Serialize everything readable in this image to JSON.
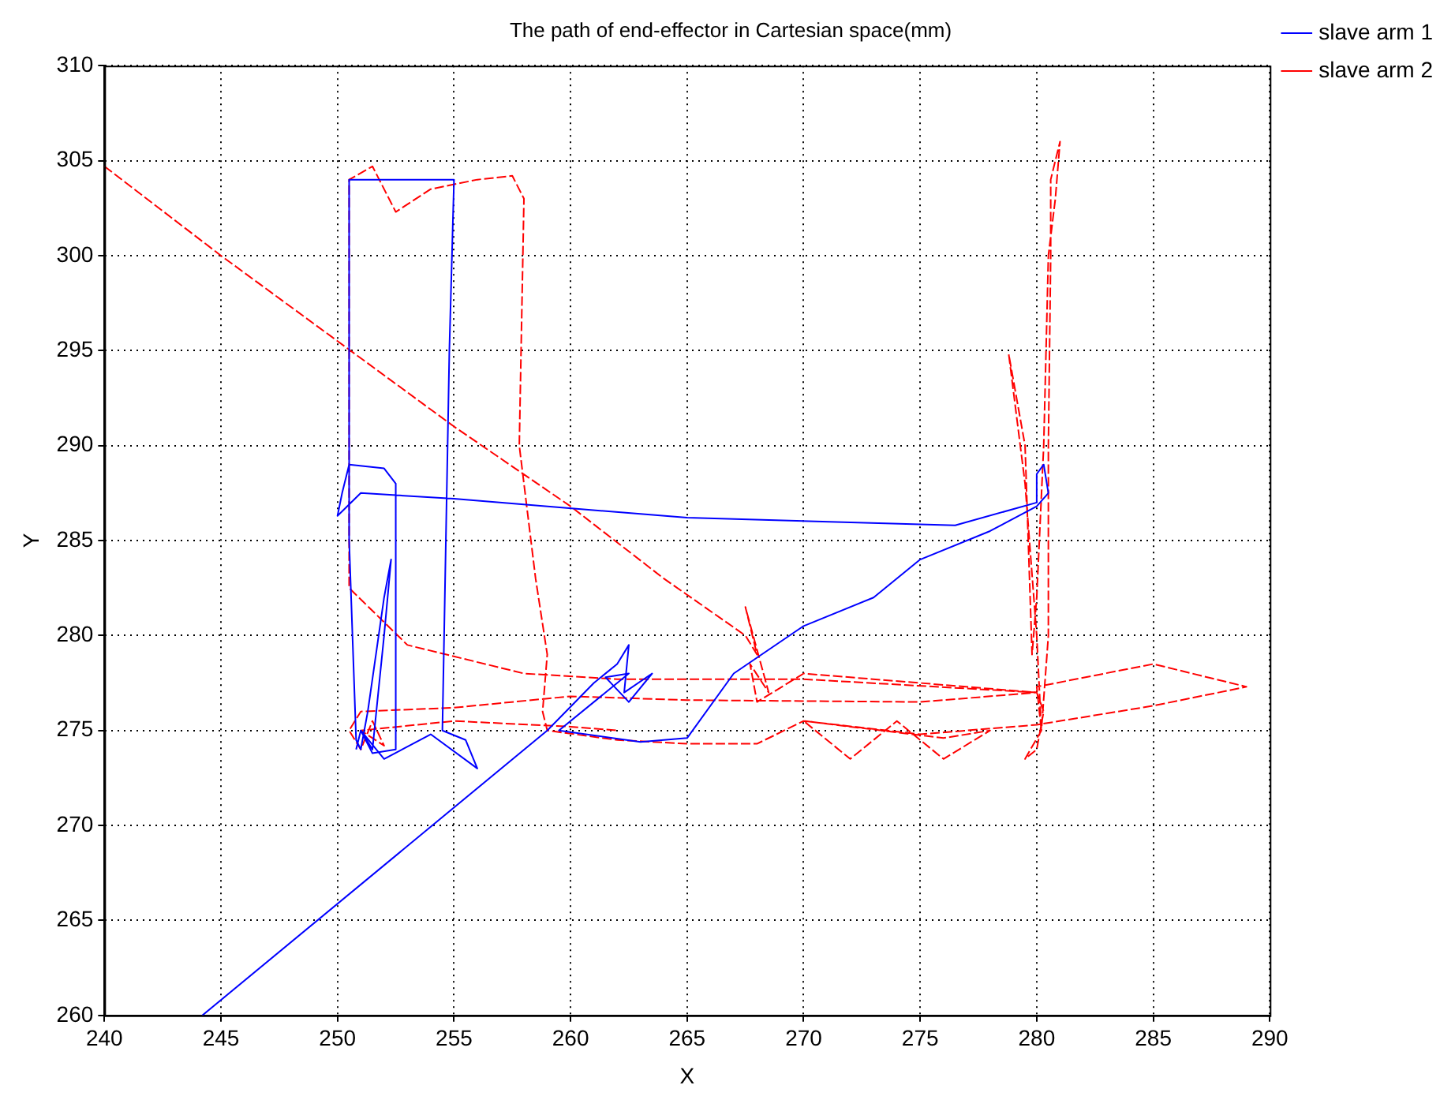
{
  "chart_data": {
    "type": "line",
    "title": "The path of end-effector in Cartesian space(mm)",
    "xlabel": "X",
    "ylabel": "Y",
    "xlim": [
      240,
      290
    ],
    "xticks": [
      240,
      245,
      250,
      255,
      260,
      265,
      270,
      275,
      280,
      285,
      290
    ],
    "ylim": [
      260,
      310
    ],
    "yticks": [
      260,
      265,
      270,
      275,
      280,
      285,
      290,
      295,
      300,
      305,
      310
    ],
    "grid": true,
    "legend": "top right",
    "marker": "none",
    "series": [
      {
        "name": "slave arm 1",
        "color": "#0000ff",
        "line_style": "solid",
        "x": [
          244.2,
          259,
          261,
          262,
          262.5,
          262.3,
          263.5,
          262.5,
          261.5,
          262.5,
          259.5,
          263,
          265,
          267,
          270,
          273,
          275,
          278,
          280,
          280.5,
          280.3,
          280,
          280,
          276.5,
          265,
          255,
          251,
          250,
          250.2,
          250.5,
          252,
          252.5,
          252.5,
          251.5,
          251,
          251.5,
          252,
          252.3,
          252,
          251.3,
          251,
          250.8,
          250.5,
          250.5,
          255,
          254.8,
          254.5,
          255.5,
          256,
          254,
          252,
          251,
          250.8
        ],
        "values": [
          260,
          275,
          277.5,
          278.5,
          279.5,
          277,
          278,
          276.5,
          277.8,
          278,
          275,
          274.4,
          274.6,
          278,
          280.5,
          282,
          284,
          285.5,
          286.8,
          287.5,
          289,
          288.5,
          287,
          285.8,
          286.2,
          287.2,
          287.5,
          286.3,
          287.5,
          289,
          288.8,
          288,
          274,
          273.8,
          275,
          274,
          280,
          284,
          282,
          276,
          274,
          274.5,
          285,
          304,
          304,
          295,
          275,
          274.5,
          273,
          274.8,
          273.5,
          275,
          274
        ]
      },
      {
        "name": "slave arm 2",
        "color": "#ff0000",
        "line_style": "dashed",
        "x": [
          240,
          245,
          250,
          255,
          260,
          264,
          267.5,
          268,
          267.5,
          268.5,
          267.7,
          268,
          270,
          275,
          280,
          280.3,
          280,
          279.5,
          280.2,
          280.5,
          280.5,
          280.6,
          280.6,
          281,
          280.8,
          280.5,
          280.3,
          280,
          279.8,
          279.5,
          278.8,
          279.5,
          280,
          280.2,
          280,
          285,
          289,
          285,
          280,
          275,
          270,
          272,
          274,
          276,
          278,
          276,
          270,
          268,
          265,
          262,
          259,
          258.8,
          259,
          258.5,
          257.8,
          258,
          257.5,
          256,
          254,
          252.5,
          251.5,
          250.5,
          250.5,
          253,
          258,
          262,
          270,
          280,
          275,
          265,
          260,
          255,
          251,
          250.5,
          251,
          251.5,
          252,
          251,
          255,
          260,
          262
        ],
        "values": [
          304.7,
          300,
          295.5,
          291,
          286.8,
          283,
          280,
          279,
          281.5,
          277,
          278.5,
          276.5,
          278,
          277.5,
          277,
          276,
          274,
          273.5,
          275,
          280,
          290,
          300,
          304,
          306,
          303,
          300,
          290,
          282,
          279,
          290,
          294.8,
          288,
          280,
          275,
          277.3,
          278.5,
          277.3,
          276.3,
          275.3,
          274.8,
          275.5,
          273.5,
          275.5,
          273.5,
          275,
          274.6,
          275.5,
          274.3,
          274.3,
          274.5,
          275,
          276,
          279,
          283,
          290,
          303,
          304.2,
          304,
          303.5,
          302.3,
          304.7,
          304,
          282.5,
          279.5,
          278,
          277.7,
          277.7,
          277,
          276.5,
          276.6,
          276.8,
          276.2,
          276,
          275,
          274,
          275.5,
          274.2,
          275,
          275.5,
          275.2,
          275
        ]
      }
    ]
  }
}
